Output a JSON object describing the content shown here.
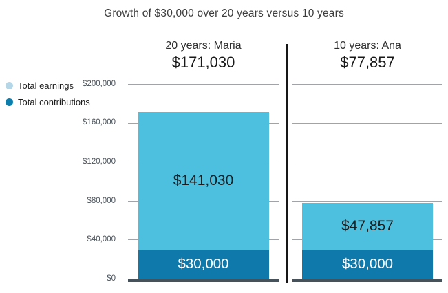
{
  "title": "Growth of $30,000 over 20 years versus 10 years",
  "legend": {
    "items": [
      {
        "label": "Total earnings",
        "color": "#b5d6e6"
      },
      {
        "label": "Total contributions",
        "color": "#0b7eae"
      }
    ]
  },
  "chart_data": {
    "type": "bar",
    "stacked": true,
    "title": "Growth of $30,000 over 20 years versus 10 years",
    "categories": [
      "20 years: Maria",
      "10 years: Ana"
    ],
    "series": [
      {
        "name": "Total earnings",
        "values": [
          141030,
          47857
        ],
        "labels": [
          "$141,030",
          "$47,857"
        ],
        "color": "#4dc0e0"
      },
      {
        "name": "Total contributions",
        "values": [
          30000,
          30000
        ],
        "labels": [
          "$30,000",
          "$30,000"
        ],
        "color": "#1079ab"
      }
    ],
    "totals": [
      171030,
      77857
    ],
    "total_labels": [
      "$171,030",
      "$77,857"
    ],
    "ylim": [
      0,
      200000
    ],
    "y_ticks": [
      0,
      40000,
      80000,
      120000,
      160000,
      200000
    ],
    "y_tick_labels": [
      "$0",
      "$40,000",
      "$80,000",
      "$120,000",
      "$160,000",
      "$200,000"
    ],
    "grid": true,
    "legend_position": "left"
  },
  "colors": {
    "earnings_bar": "#4dc0e0",
    "contributions_bar": "#1079ab",
    "gridline": "#a0a4a8",
    "baseline": "#45525c",
    "divider": "#161616",
    "earnings_label_text": "#1d1d1d",
    "contributions_label_text": "#ffffff"
  }
}
